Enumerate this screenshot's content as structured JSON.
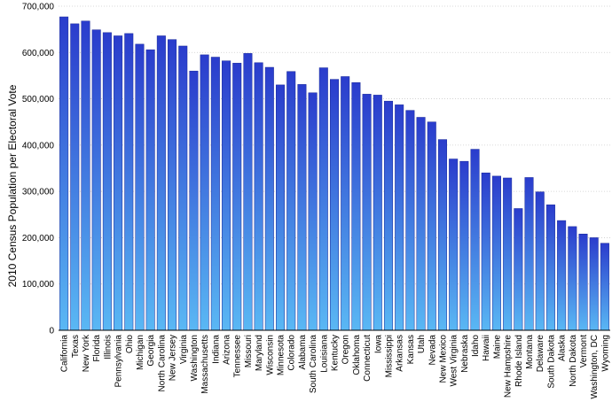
{
  "chart_data": {
    "type": "bar",
    "title": "",
    "xlabel": "",
    "ylabel": "2010 Census Population per Electoral Vote",
    "ylim": [
      0,
      700000
    ],
    "yticks": [
      0,
      100000,
      200000,
      300000,
      400000,
      500000,
      600000,
      700000
    ],
    "ytick_labels": [
      "0",
      "100,000",
      "200,000",
      "300,000",
      "400,000",
      "500,000",
      "600,000",
      "700,000"
    ],
    "grid": true,
    "legend": "none",
    "bar_color_top": "#2a3ccc",
    "bar_color_bottom": "#5ab8f4",
    "categories": [
      "California",
      "Texas",
      "New York",
      "Florida",
      "Illinois",
      "Pennsylvania",
      "Ohio",
      "Michigan",
      "Georgia",
      "North Carolina",
      "New Jersey",
      "Virginia",
      "Washington",
      "Massachusetts",
      "Indiana",
      "Arizona",
      "Tennessee",
      "Missouri",
      "Maryland",
      "Wisconsin",
      "Minnesota",
      "Colorado",
      "Alabama",
      "South Carolina",
      "Louisiana",
      "Kentucky",
      "Oregon",
      "Oklahoma",
      "Connecticut",
      "Iowa",
      "Mississippi",
      "Arkansas",
      "Kansas",
      "Utah",
      "Nevada",
      "New Mexico",
      "West Virginia",
      "Nebraska",
      "Idaho",
      "Hawaii",
      "Maine",
      "New Hampshire",
      "Rhode Island",
      "Montana",
      "Delaware",
      "South Dakota",
      "Alaska",
      "North Dakota",
      "Vermont",
      "Washington, DC",
      "Wyoming"
    ],
    "values": [
      677000,
      662000,
      668000,
      649000,
      643000,
      636000,
      641000,
      618000,
      606000,
      636000,
      628000,
      614000,
      560000,
      595000,
      590000,
      582000,
      577000,
      598000,
      578000,
      568000,
      530000,
      559000,
      531000,
      513000,
      567000,
      542000,
      548000,
      535000,
      510000,
      508000,
      495000,
      487000,
      475000,
      460000,
      450000,
      412000,
      370000,
      365000,
      391000,
      340000,
      333000,
      329000,
      263000,
      330000,
      299000,
      271000,
      237000,
      224000,
      208000,
      200000,
      188000
    ]
  }
}
